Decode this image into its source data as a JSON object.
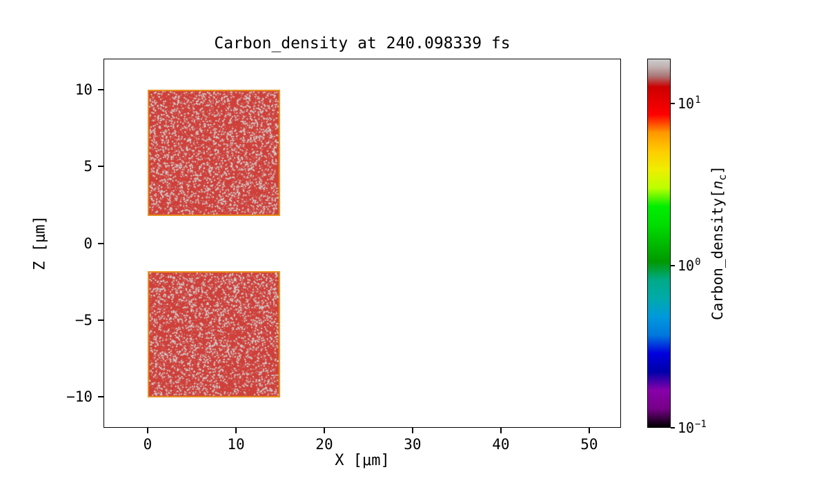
{
  "chart_data": {
    "type": "heatmap",
    "title": "Carbon_density at 240.098339 fs",
    "xlabel": "X [μm]",
    "ylabel": "Z [μm]",
    "xlim": [
      -5,
      53.6
    ],
    "ylim": [
      -12,
      12
    ],
    "grid": false,
    "plot_background": "#ffffff",
    "colormap": "nipy_spectral",
    "scale": "log",
    "xticks": {
      "values": [
        0,
        10,
        20,
        30,
        40,
        50
      ],
      "labels": [
        "0",
        "10",
        "20",
        "30",
        "40",
        "50"
      ]
    },
    "yticks": {
      "values": [
        10,
        5,
        0,
        -5,
        -10
      ],
      "labels": [
        "10",
        "5",
        "0",
        "−5",
        "−10"
      ]
    },
    "colorbar": {
      "label_prefix": "Carbon_density[",
      "label_var": "n",
      "label_sub": "c",
      "label_suffix": "]",
      "vmin": 0.1,
      "vmax": 19,
      "ticks": {
        "values": [
          10,
          1,
          0.1
        ],
        "bases": [
          "10",
          "10",
          "10"
        ],
        "exps": [
          "1",
          "0",
          "−1"
        ]
      }
    },
    "regions": [
      {
        "name": "carbon-slab-upper",
        "x0": 0,
        "x1": 15,
        "z0": 1.8,
        "z1": 10,
        "density_nc": 10,
        "fill": "#cf403a",
        "speckle": "#d2d2d2",
        "edge": "#e8941e"
      },
      {
        "name": "carbon-slab-lower",
        "x0": 0,
        "x1": 15,
        "z0": -10,
        "z1": -1.8,
        "density_nc": 10,
        "fill": "#cf403a",
        "speckle": "#d2d2d2",
        "edge": "#e8941e"
      }
    ],
    "background_value_nc": 0
  }
}
